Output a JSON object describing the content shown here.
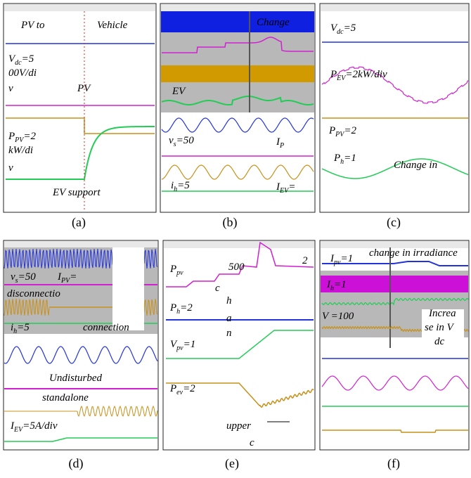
{
  "panels": [
    {
      "label": "(a)",
      "annotations": [
        {
          "parts": [
            "PV to"
          ]
        },
        {
          "parts": [
            "Vehicle"
          ]
        },
        {
          "parts": [
            "V",
            "dc",
            "=5"
          ]
        },
        {
          "parts": [
            "00V/di"
          ]
        },
        {
          "parts": [
            "v"
          ]
        },
        {
          "parts": [
            "PV"
          ]
        },
        {
          "parts": [
            "P",
            "PV",
            "=2"
          ]
        },
        {
          "parts": [
            "kW/di"
          ]
        },
        {
          "parts": [
            "v"
          ]
        },
        {
          "parts": [
            "EV support"
          ]
        }
      ]
    },
    {
      "label": "(b)",
      "annotations": [
        {
          "parts": [
            "Change"
          ]
        },
        {
          "parts": [
            "EV"
          ]
        },
        {
          "parts": [
            "v",
            "s",
            "=50"
          ]
        },
        {
          "parts": [
            "I",
            "P"
          ]
        },
        {
          "parts": [
            "i",
            "h",
            "=5"
          ]
        },
        {
          "parts": [
            "I",
            "EV",
            "="
          ]
        }
      ]
    },
    {
      "label": "(c)",
      "annotations": [
        {
          "parts": [
            "V",
            "dc",
            "=5"
          ]
        },
        {
          "parts": [
            "P",
            "EV",
            "=2kW/div"
          ]
        },
        {
          "parts": [
            "P",
            "PV",
            "=2"
          ]
        },
        {
          "parts": [
            "P",
            "h",
            "=1"
          ]
        },
        {
          "parts": [
            "Change in"
          ]
        }
      ]
    },
    {
      "label": "(d)",
      "annotations": [
        {
          "parts": [
            "v",
            "s",
            "=50"
          ]
        },
        {
          "parts": [
            "I",
            "PV",
            "="
          ]
        },
        {
          "parts": [
            "disconnectio"
          ]
        },
        {
          "parts": [
            "i",
            "h",
            "=5"
          ]
        },
        {
          "parts": [
            "connection"
          ]
        },
        {
          "parts": [
            "Undisturbed"
          ]
        },
        {
          "parts": [
            "standalone"
          ]
        },
        {
          "parts": [
            "I",
            "EV",
            "=5A/div"
          ]
        }
      ]
    },
    {
      "label": "(e)",
      "annotations": [
        {
          "parts": [
            "P",
            "pv"
          ]
        },
        {
          "parts": [
            "500"
          ]
        },
        {
          "parts": [
            "2"
          ]
        },
        {
          "parts": [
            "c"
          ]
        },
        {
          "parts": [
            "P",
            "h",
            "=2"
          ]
        },
        {
          "parts": [
            "h"
          ]
        },
        {
          "parts": [
            "a"
          ]
        },
        {
          "parts": [
            "n"
          ]
        },
        {
          "parts": [
            "V",
            "pv",
            "=1"
          ]
        },
        {
          "parts": [
            "P",
            "ev",
            "=2"
          ]
        },
        {
          "parts": [
            "upper"
          ]
        },
        {
          "parts": [
            "c"
          ]
        }
      ]
    },
    {
      "label": "(f)",
      "annotations": [
        {
          "parts": [
            "I",
            "pv",
            "=1"
          ]
        },
        {
          "parts": [
            "change in irradiance"
          ]
        },
        {
          "parts": [
            "I",
            "h",
            "=1"
          ]
        },
        {
          "parts": [
            "V =100"
          ]
        },
        {
          "parts": [
            "Increa"
          ]
        },
        {
          "parts": [
            "se in V"
          ]
        },
        {
          "parts": [
            "dc"
          ]
        }
      ]
    }
  ]
}
